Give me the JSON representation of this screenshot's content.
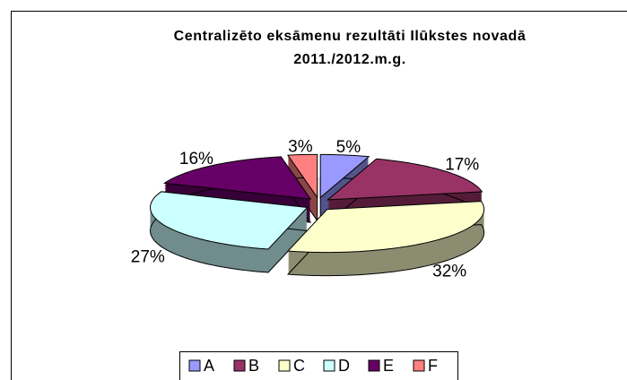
{
  "chart_data": {
    "type": "pie3d",
    "title": "Centralizēto eksāmenu rezultāti Ilūkstes novadā 2011./2012.m.g.",
    "categories": [
      "A",
      "B",
      "C",
      "D",
      "E",
      "F"
    ],
    "values": [
      5,
      17,
      32,
      27,
      16,
      3
    ],
    "value_labels": [
      "5%",
      "17%",
      "32%",
      "27%",
      "16%",
      "3%"
    ],
    "colors": [
      "#9999ff",
      "#993366",
      "#ffffcc",
      "#ccffff",
      "#660066",
      "#ff8080"
    ],
    "legend": "bottom"
  }
}
